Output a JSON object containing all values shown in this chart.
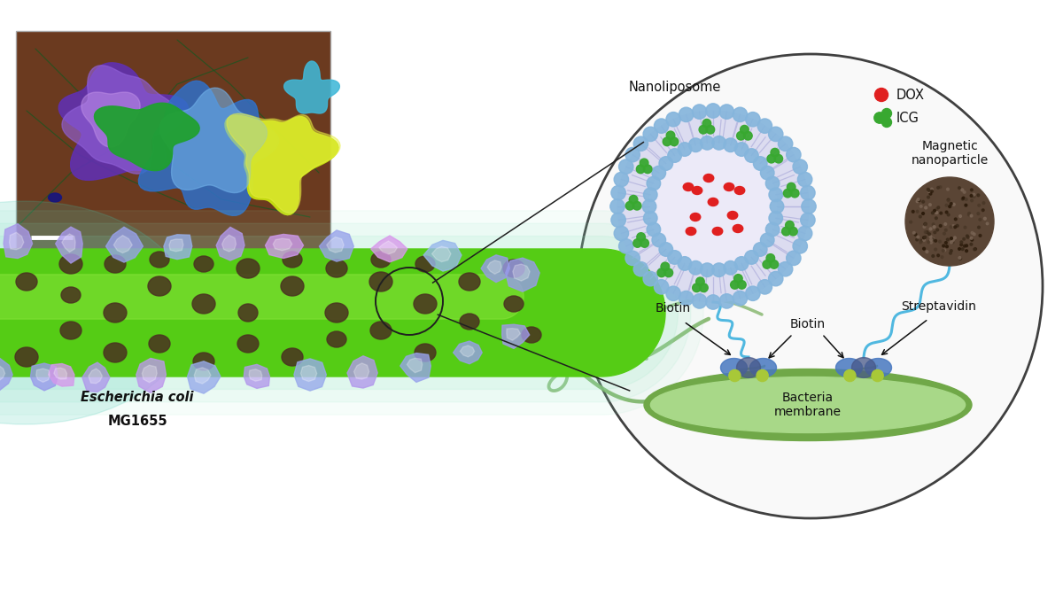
{
  "bg_color": "#ffffff",
  "fig_width": 12.0,
  "fig_height": 6.75,
  "bacterium_label_italic": "Escherichia coli",
  "bacterium_label_normal": "MG1655",
  "nanoliposome_label": "Nanoliposome",
  "magnetic_label": "Magnetic\nnanoparticle",
  "biotin_label1": "Biotin",
  "biotin_label2": "Biotin",
  "streptavidin_label": "Streptavidin",
  "bacteria_membrane_label": "Bacteria\nmembrane",
  "dox_label": "DOX",
  "icg_label": "ICG",
  "lipid_color": "#90b8dc",
  "lipid_inner_color": "#d8d8f0",
  "dox_color": "#e02020",
  "icg_color": "#38a830",
  "magnetic_color": "#5a4535",
  "membrane_color_top": "#b8e8a0",
  "membrane_color_bot": "#70a858",
  "flagella_color": "#7ab060",
  "bacterium_bright": "#55cc10",
  "bacterium_teal": "#40c0a0",
  "circle_bg": "#f8f8f8"
}
